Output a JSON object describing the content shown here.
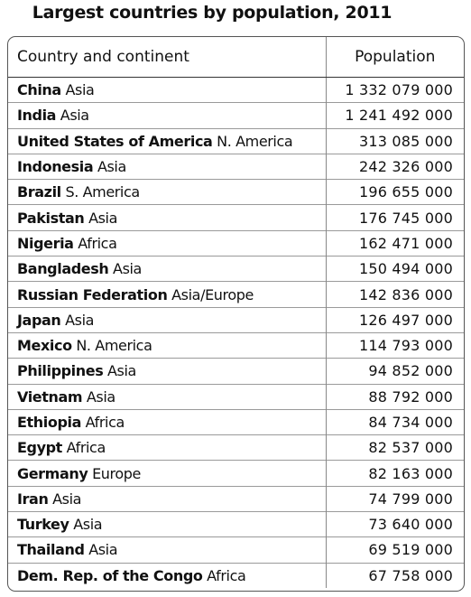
{
  "title": "Largest countries by population, 2011",
  "table": {
    "headers": {
      "country": "Country and continent",
      "population": "Population"
    },
    "rows": [
      {
        "country": "China",
        "continent": "Asia",
        "population": "1 332 079 000"
      },
      {
        "country": "India",
        "continent": "Asia",
        "population": "1 241 492 000"
      },
      {
        "country": "United States of America",
        "continent": "N. America",
        "population": "313 085 000"
      },
      {
        "country": "Indonesia",
        "continent": "Asia",
        "population": "242 326 000"
      },
      {
        "country": "Brazil",
        "continent": "S. America",
        "population": "196 655 000"
      },
      {
        "country": "Pakistan",
        "continent": "Asia",
        "population": "176 745 000"
      },
      {
        "country": "Nigeria",
        "continent": "Africa",
        "population": "162 471 000"
      },
      {
        "country": "Bangladesh",
        "continent": "Asia",
        "population": "150 494 000"
      },
      {
        "country": "Russian Federation",
        "continent": "Asia/Europe",
        "population": "142 836 000"
      },
      {
        "country": "Japan",
        "continent": "Asia",
        "population": "126 497 000"
      },
      {
        "country": "Mexico",
        "continent": "N. America",
        "population": "114 793 000"
      },
      {
        "country": "Philippines",
        "continent": "Asia",
        "population": "94 852 000"
      },
      {
        "country": "Vietnam",
        "continent": "Asia",
        "population": "88 792 000"
      },
      {
        "country": "Ethiopia",
        "continent": "Africa",
        "population": "84 734 000"
      },
      {
        "country": "Egypt",
        "continent": "Africa",
        "population": "82 537 000"
      },
      {
        "country": "Germany",
        "continent": "Europe",
        "population": "82 163 000"
      },
      {
        "country": "Iran",
        "continent": "Asia",
        "population": "74 799 000"
      },
      {
        "country": "Turkey",
        "continent": "Asia",
        "population": "73 640 000"
      },
      {
        "country": "Thailand",
        "continent": "Asia",
        "population": "69 519 000"
      },
      {
        "country": "Dem. Rep. of the Congo",
        "continent": "Africa",
        "population": "67 758 000"
      }
    ]
  }
}
